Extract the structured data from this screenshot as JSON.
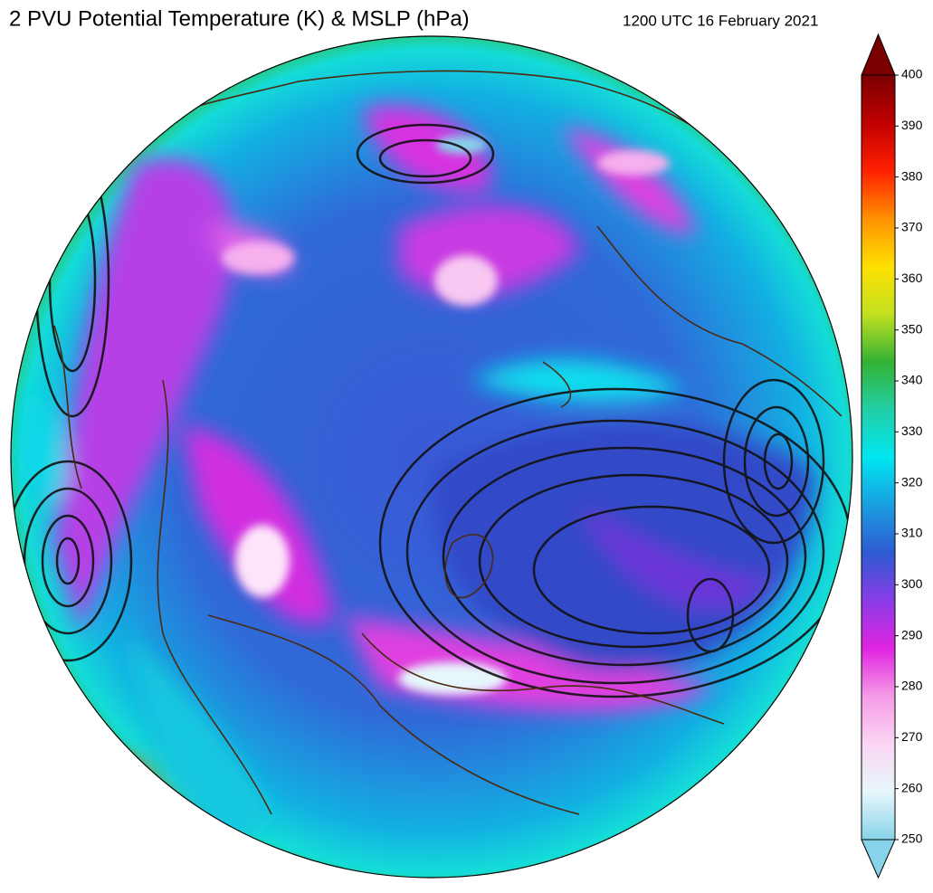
{
  "title": "2 PVU Potential Temperature (K) & MSLP (hPa)",
  "timestamp": "1200 UTC 16 February 2021",
  "colorbar": {
    "lim": [
      250,
      400
    ],
    "ticks": [
      250,
      260,
      270,
      280,
      290,
      300,
      310,
      320,
      330,
      340,
      350,
      360,
      370,
      380,
      390,
      400
    ],
    "colors": [
      "#87d3ea",
      "#e6f7fb",
      "#fbd6f4",
      "#f59be6",
      "#e024e0",
      "#8a3ce6",
      "#2e5ad2",
      "#1a9ee0",
      "#00e6f0",
      "#22cfa6",
      "#34b234",
      "#c2e020",
      "#ffe000",
      "#ff9000",
      "#ff2000",
      "#c00000",
      "#7a0000"
    ],
    "extend": "both"
  }
}
